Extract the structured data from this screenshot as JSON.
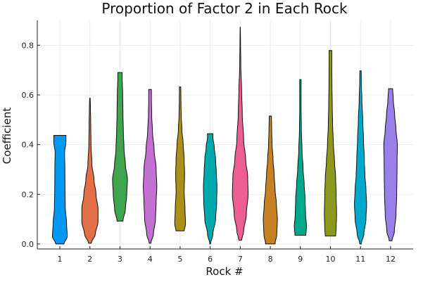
{
  "chart_data": {
    "type": "violin",
    "title": "Proportion of Factor 2 in Each Rock",
    "xlabel": "Rock #",
    "ylabel": "Coefficient",
    "ylim": [
      -0.02,
      0.9
    ],
    "xlim": [
      0.25,
      12.75
    ],
    "yticks": [
      0.0,
      0.2,
      0.4,
      0.6,
      0.8
    ],
    "ytick_labels": [
      "0.0",
      "0.2",
      "0.4",
      "0.6",
      "0.8"
    ],
    "categories": [
      "1",
      "2",
      "3",
      "4",
      "5",
      "6",
      "7",
      "8",
      "9",
      "10",
      "11",
      "12"
    ],
    "grid": true,
    "legend": "none",
    "colors": [
      "#0099f2",
      "#e26f46",
      "#3ea44e",
      "#c271d2",
      "#ac8e18",
      "#00a9ad",
      "#ed5e93",
      "#c68125",
      "#00a98d",
      "#8e971e",
      "#00a8cb",
      "#9b7fe8"
    ],
    "series": [
      {
        "min": 0.0,
        "max": 0.437,
        "profile": [
          [
            0.0,
            0.3
          ],
          [
            0.03,
            0.55
          ],
          [
            0.08,
            0.5
          ],
          [
            0.15,
            0.4
          ],
          [
            0.22,
            0.38
          ],
          [
            0.3,
            0.37
          ],
          [
            0.37,
            0.35
          ],
          [
            0.41,
            0.45
          ],
          [
            0.437,
            0.45
          ]
        ]
      },
      {
        "min": 0.003,
        "max": 0.587,
        "profile": [
          [
            0.003,
            0.1
          ],
          [
            0.04,
            0.4
          ],
          [
            0.09,
            0.6
          ],
          [
            0.14,
            0.6
          ],
          [
            0.2,
            0.45
          ],
          [
            0.26,
            0.3
          ],
          [
            0.32,
            0.15
          ],
          [
            0.4,
            0.08
          ],
          [
            0.48,
            0.06
          ],
          [
            0.55,
            0.04
          ],
          [
            0.587,
            0.02
          ]
        ]
      },
      {
        "min": 0.092,
        "max": 0.69,
        "profile": [
          [
            0.092,
            0.22
          ],
          [
            0.14,
            0.4
          ],
          [
            0.2,
            0.5
          ],
          [
            0.26,
            0.55
          ],
          [
            0.32,
            0.4
          ],
          [
            0.38,
            0.3
          ],
          [
            0.45,
            0.25
          ],
          [
            0.52,
            0.22
          ],
          [
            0.6,
            0.2
          ],
          [
            0.67,
            0.16
          ],
          [
            0.69,
            0.16
          ]
        ]
      },
      {
        "min": 0.003,
        "max": 0.622,
        "profile": [
          [
            0.003,
            0.06
          ],
          [
            0.04,
            0.25
          ],
          [
            0.1,
            0.4
          ],
          [
            0.17,
            0.45
          ],
          [
            0.23,
            0.5
          ],
          [
            0.3,
            0.45
          ],
          [
            0.38,
            0.3
          ],
          [
            0.45,
            0.18
          ],
          [
            0.52,
            0.12
          ],
          [
            0.58,
            0.1
          ],
          [
            0.622,
            0.1
          ]
        ]
      },
      {
        "min": 0.053,
        "max": 0.632,
        "profile": [
          [
            0.053,
            0.3
          ],
          [
            0.08,
            0.4
          ],
          [
            0.14,
            0.36
          ],
          [
            0.21,
            0.3
          ],
          [
            0.28,
            0.33
          ],
          [
            0.34,
            0.3
          ],
          [
            0.4,
            0.23
          ],
          [
            0.46,
            0.13
          ],
          [
            0.52,
            0.08
          ],
          [
            0.58,
            0.06
          ],
          [
            0.632,
            0.05
          ]
        ]
      },
      {
        "min": 0.0,
        "max": 0.444,
        "profile": [
          [
            0.0,
            0.03
          ],
          [
            0.04,
            0.2
          ],
          [
            0.1,
            0.4
          ],
          [
            0.17,
            0.48
          ],
          [
            0.23,
            0.5
          ],
          [
            0.29,
            0.45
          ],
          [
            0.34,
            0.4
          ],
          [
            0.39,
            0.3
          ],
          [
            0.43,
            0.2
          ],
          [
            0.444,
            0.2
          ]
        ]
      },
      {
        "min": 0.015,
        "max": 0.872,
        "profile": [
          [
            0.015,
            0.1
          ],
          [
            0.05,
            0.25
          ],
          [
            0.12,
            0.45
          ],
          [
            0.2,
            0.58
          ],
          [
            0.27,
            0.55
          ],
          [
            0.34,
            0.4
          ],
          [
            0.42,
            0.25
          ],
          [
            0.52,
            0.15
          ],
          [
            0.62,
            0.1
          ],
          [
            0.72,
            0.04
          ],
          [
            0.82,
            0.02
          ],
          [
            0.872,
            0.01
          ]
        ]
      },
      {
        "min": 0.0,
        "max": 0.515,
        "profile": [
          [
            0.0,
            0.35
          ],
          [
            0.04,
            0.48
          ],
          [
            0.1,
            0.52
          ],
          [
            0.16,
            0.45
          ],
          [
            0.22,
            0.35
          ],
          [
            0.28,
            0.28
          ],
          [
            0.34,
            0.2
          ],
          [
            0.4,
            0.13
          ],
          [
            0.46,
            0.1
          ],
          [
            0.515,
            0.08
          ]
        ]
      },
      {
        "min": 0.035,
        "max": 0.662,
        "profile": [
          [
            0.035,
            0.4
          ],
          [
            0.07,
            0.45
          ],
          [
            0.12,
            0.38
          ],
          [
            0.18,
            0.35
          ],
          [
            0.24,
            0.28
          ],
          [
            0.3,
            0.2
          ],
          [
            0.38,
            0.12
          ],
          [
            0.46,
            0.07
          ],
          [
            0.55,
            0.05
          ],
          [
            0.62,
            0.05
          ],
          [
            0.662,
            0.05
          ]
        ]
      },
      {
        "min": 0.032,
        "max": 0.779,
        "profile": [
          [
            0.032,
            0.38
          ],
          [
            0.06,
            0.42
          ],
          [
            0.12,
            0.45
          ],
          [
            0.2,
            0.42
          ],
          [
            0.27,
            0.38
          ],
          [
            0.33,
            0.3
          ],
          [
            0.4,
            0.22
          ],
          [
            0.48,
            0.16
          ],
          [
            0.56,
            0.13
          ],
          [
            0.64,
            0.11
          ],
          [
            0.72,
            0.1
          ],
          [
            0.779,
            0.1
          ]
        ]
      },
      {
        "min": 0.0,
        "max": 0.697,
        "profile": [
          [
            0.0,
            0.05
          ],
          [
            0.04,
            0.25
          ],
          [
            0.1,
            0.4
          ],
          [
            0.16,
            0.45
          ],
          [
            0.22,
            0.4
          ],
          [
            0.28,
            0.32
          ],
          [
            0.34,
            0.28
          ],
          [
            0.42,
            0.22
          ],
          [
            0.5,
            0.16
          ],
          [
            0.58,
            0.1
          ],
          [
            0.65,
            0.06
          ],
          [
            0.697,
            0.05
          ]
        ]
      },
      {
        "min": 0.013,
        "max": 0.625,
        "profile": [
          [
            0.013,
            0.1
          ],
          [
            0.05,
            0.28
          ],
          [
            0.12,
            0.4
          ],
          [
            0.2,
            0.45
          ],
          [
            0.27,
            0.47
          ],
          [
            0.33,
            0.48
          ],
          [
            0.4,
            0.5
          ],
          [
            0.46,
            0.4
          ],
          [
            0.52,
            0.3
          ],
          [
            0.58,
            0.2
          ],
          [
            0.625,
            0.15
          ]
        ]
      }
    ]
  }
}
